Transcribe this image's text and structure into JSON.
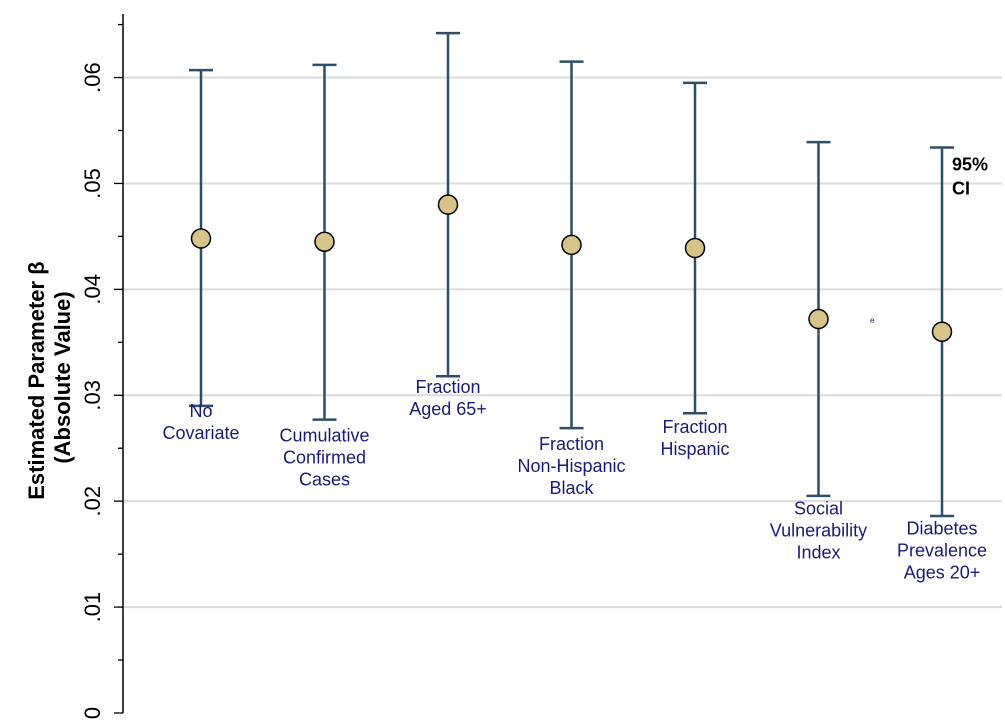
{
  "colors": {
    "background": "#ffffff",
    "gridline": "#d6dcdf",
    "axis": "#000000",
    "errorbar": "#2e4d66",
    "marker_fill": "#d6c48a",
    "marker_stroke": "#000000",
    "category_text": "#1a1a7a"
  },
  "chart_data": {
    "type": "scatter",
    "title": "",
    "xlabel": "",
    "ylabel_lines": [
      "Estimated Parameter β",
      "(Absolute Value)"
    ],
    "ylim": [
      0,
      0.066
    ],
    "yticks": [
      0,
      0.01,
      0.02,
      0.03,
      0.04,
      0.05,
      0.06
    ],
    "ytick_labels": [
      "0",
      ".01",
      ".02",
      ".03",
      ".04",
      ".05",
      ".06"
    ],
    "grid": true,
    "legend": "none",
    "annotation": {
      "lines": [
        "95%",
        "CI"
      ]
    },
    "stray_mark": "e",
    "points": [
      {
        "label_lines": [
          "No",
          "Covariate"
        ],
        "estimate": 0.0448,
        "ci_lower": 0.029,
        "ci_upper": 0.0607,
        "label_y": 0.0285
      },
      {
        "label_lines": [
          "Cumulative",
          "Confirmed",
          "Cases"
        ],
        "estimate": 0.0445,
        "ci_lower": 0.0277,
        "ci_upper": 0.0612,
        "label_y": 0.0262
      },
      {
        "label_lines": [
          "Fraction",
          "Aged 65+"
        ],
        "estimate": 0.048,
        "ci_lower": 0.0318,
        "ci_upper": 0.0642,
        "label_y": 0.0308
      },
      {
        "label_lines": [
          "Fraction",
          "Non-Hispanic",
          "Black"
        ],
        "estimate": 0.0442,
        "ci_lower": 0.0269,
        "ci_upper": 0.0615,
        "label_y": 0.0254
      },
      {
        "label_lines": [
          "Fraction",
          "Hispanic"
        ],
        "estimate": 0.0439,
        "ci_lower": 0.0283,
        "ci_upper": 0.0595,
        "label_y": 0.027
      },
      {
        "label_lines": [
          "Social",
          "Vulnerability",
          "Index"
        ],
        "estimate": 0.0372,
        "ci_lower": 0.0205,
        "ci_upper": 0.0539,
        "label_y": 0.0193
      },
      {
        "label_lines": [
          "Diabetes",
          "Prevalence",
          "Ages 20+"
        ],
        "estimate": 0.036,
        "ci_lower": 0.0186,
        "ci_upper": 0.0534,
        "label_y": 0.0174
      }
    ]
  }
}
